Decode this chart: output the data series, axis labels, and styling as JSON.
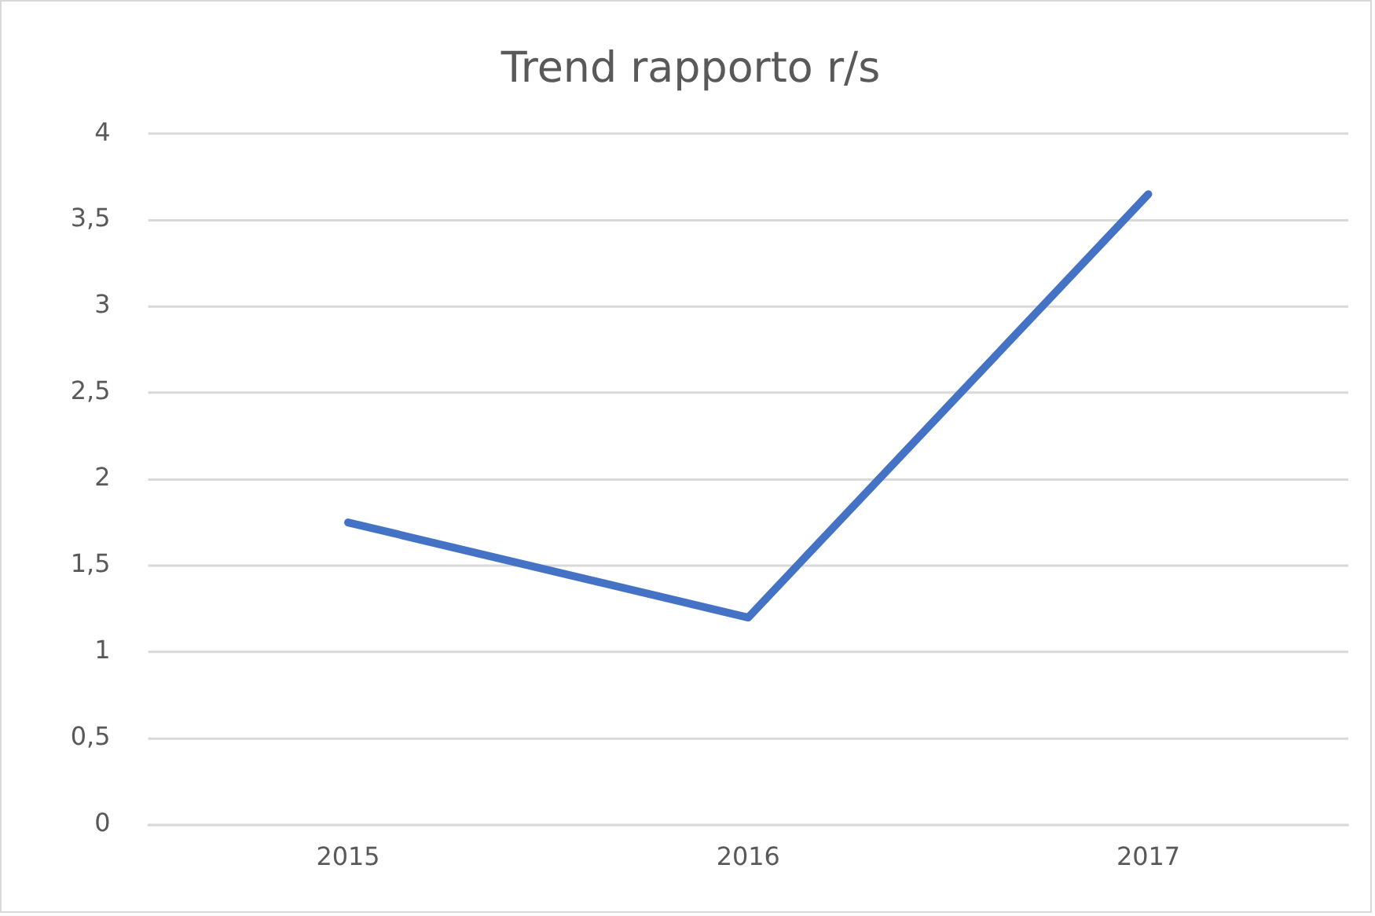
{
  "chart_data": {
    "type": "line",
    "title": "Trend rapporto r/s",
    "categories": [
      "2015",
      "2016",
      "2017"
    ],
    "series": [
      {
        "color": "#4472c4",
        "values": [
          1.75,
          1.2,
          3.65
        ]
      }
    ],
    "ylim": [
      0,
      4
    ],
    "yticks": [
      0,
      {
        "value": 0.5,
        "label": "0,5"
      },
      1,
      {
        "value": 1.5,
        "label": "1,5"
      },
      2,
      {
        "value": 2.5,
        "label": "2,5"
      },
      3,
      {
        "value": 3.5,
        "label": "3,5"
      },
      4
    ],
    "grid": "y",
    "legend": false,
    "marker": "none",
    "line_style": "solid"
  }
}
